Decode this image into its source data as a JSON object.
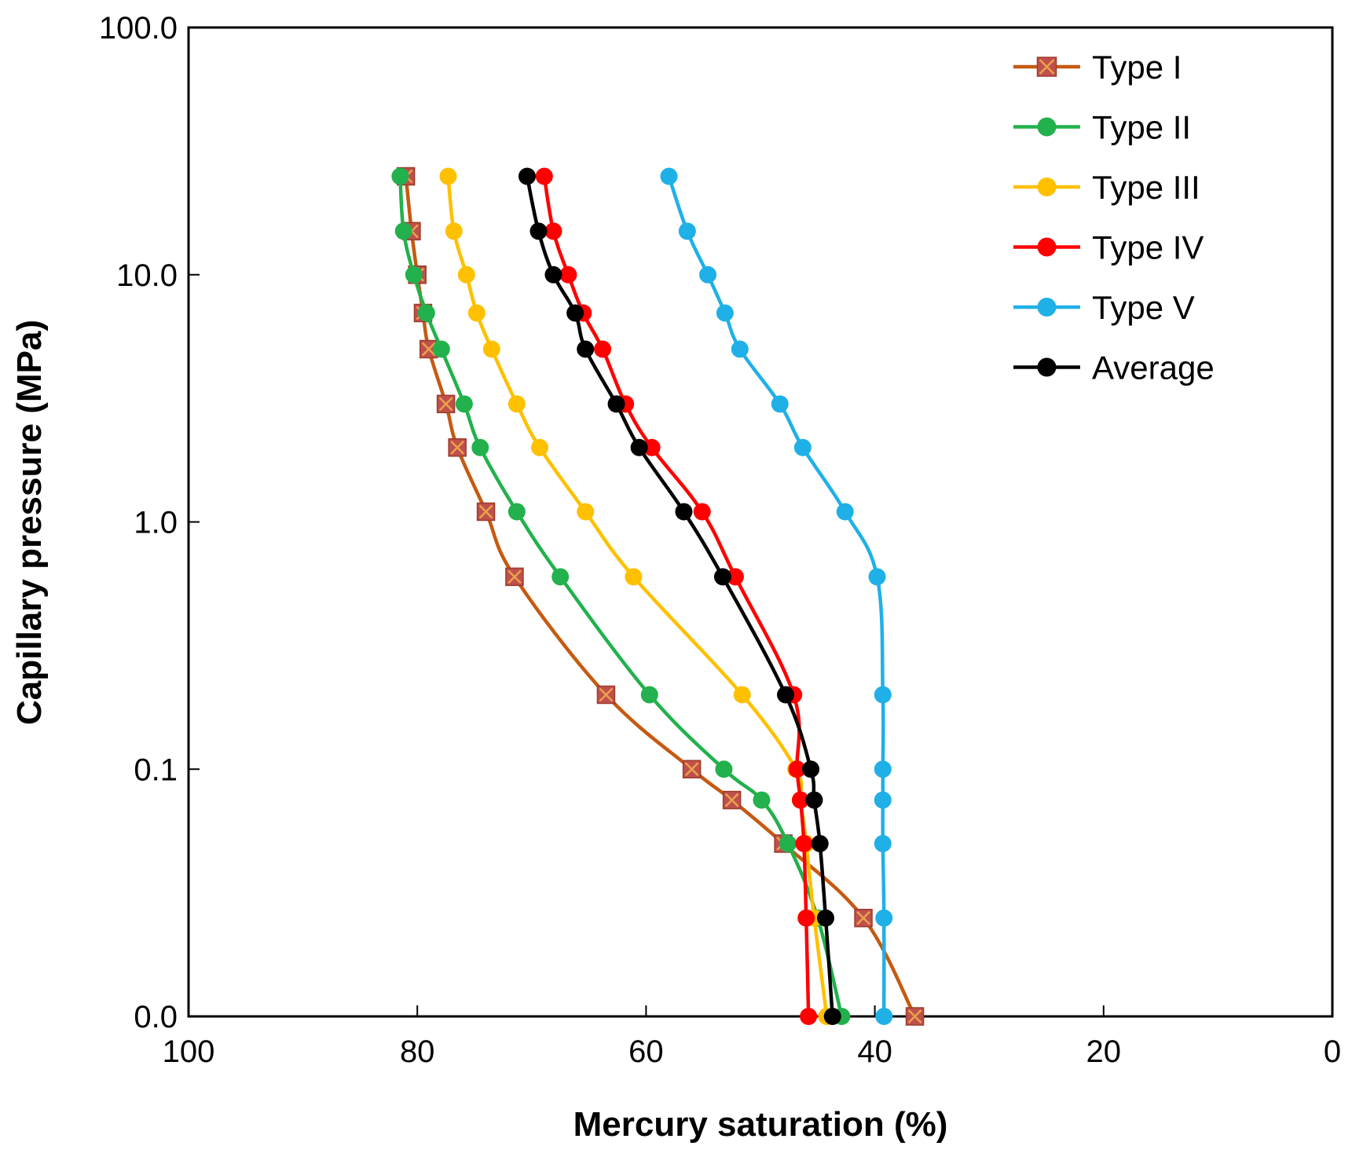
{
  "chart_data": {
    "type": "line",
    "title": "",
    "xlabel": "Mercury saturation (%)",
    "ylabel": "Capillary pressure (MPa)",
    "x_reversed": true,
    "xlim": [
      100,
      0
    ],
    "xticks": [
      100,
      80,
      60,
      40,
      20,
      0
    ],
    "xtick_labels": [
      "100",
      "80",
      "60",
      "40",
      "20",
      "0"
    ],
    "y_scale": "log",
    "ylim": [
      0.01,
      100
    ],
    "yticks": [
      0.01,
      0.1,
      1,
      10,
      100
    ],
    "ytick_labels": [
      "0.0",
      "0.1",
      "1.0",
      "10.0",
      "100.0"
    ],
    "grid": false,
    "legend_position": "top-right",
    "y": [
      25,
      15,
      10,
      7,
      5,
      3,
      2,
      1.1,
      0.6,
      0.2,
      0.1,
      0.075,
      0.05,
      0.025,
      0.01
    ],
    "series": [
      {
        "name": "Type I",
        "color": "#C0504D",
        "line_color": "#C55A11",
        "marker": "square-x",
        "x": [
          81,
          80.5,
          80,
          79.5,
          79,
          77.5,
          76.5,
          74,
          71.5,
          63.5,
          56,
          52.5,
          48,
          41,
          36.5
        ],
        "y": [
          25,
          15,
          10,
          7,
          5,
          3,
          2,
          1.1,
          0.6,
          0.2,
          0.1,
          0.075,
          0.05,
          0.025,
          0.01
        ]
      },
      {
        "name": "Type II",
        "color": "#22B14C",
        "marker": "circle",
        "x": [
          81.5,
          81.2,
          80.3,
          79.2,
          77.9,
          75.9,
          74.5,
          71.3,
          67.5,
          59.7,
          53.2,
          49.9,
          47.6,
          45,
          42.9
        ],
        "y": [
          25,
          15,
          10,
          7,
          5,
          3,
          2,
          1.1,
          0.6,
          0.2,
          0.1,
          0.075,
          0.05,
          0.025,
          0.01
        ]
      },
      {
        "name": "Type III",
        "color": "#FFC000",
        "marker": "circle",
        "x": [
          77.3,
          76.8,
          75.7,
          74.8,
          73.5,
          71.3,
          69.3,
          65.3,
          61.1,
          51.6,
          46.9,
          46.5,
          46,
          45.3,
          44.2
        ],
        "y": [
          25,
          15,
          10,
          7,
          5,
          3,
          2,
          1.1,
          0.6,
          0.2,
          0.1,
          0.075,
          0.05,
          0.025,
          0.01
        ]
      },
      {
        "name": "Type IV",
        "color": "#FF0000",
        "marker": "circle",
        "x": [
          68.9,
          68.1,
          66.8,
          65.5,
          63.8,
          61.8,
          59.5,
          55.1,
          52.2,
          47.1,
          46.8,
          46.5,
          46.2,
          46,
          45.8
        ],
        "y": [
          25,
          15,
          10,
          7,
          5,
          3,
          2,
          1.1,
          0.6,
          0.2,
          0.1,
          0.075,
          0.05,
          0.025,
          0.01
        ]
      },
      {
        "name": "Type V",
        "color": "#1FB0E8",
        "marker": "circle",
        "x": [
          58,
          56.4,
          54.6,
          53.1,
          51.8,
          48.3,
          46.3,
          42.6,
          39.8,
          39.3,
          39.3,
          39.3,
          39.3,
          39.2,
          39.2
        ],
        "y": [
          25,
          15,
          10,
          7,
          5,
          3,
          2,
          1.1,
          0.6,
          0.2,
          0.1,
          0.075,
          0.05,
          0.025,
          0.01
        ]
      },
      {
        "name": "Average",
        "color": "#000000",
        "marker": "circle",
        "x": [
          70.4,
          69.4,
          68.1,
          66.2,
          65.3,
          62.6,
          60.6,
          56.7,
          53.3,
          47.8,
          45.6,
          45.3,
          44.8,
          44.3,
          43.7
        ],
        "y": [
          25,
          15,
          10,
          7,
          5,
          3,
          2,
          1.1,
          0.6,
          0.2,
          0.1,
          0.075,
          0.05,
          0.025,
          0.01
        ]
      }
    ]
  }
}
